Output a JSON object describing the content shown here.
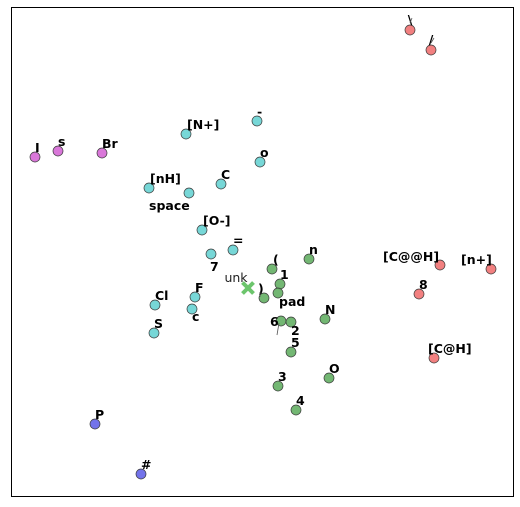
{
  "chart_data": {
    "type": "scatter",
    "title": "",
    "xlabel": "",
    "ylabel": "",
    "xlim": [
      0,
      500
    ],
    "ylim": [
      0,
      488
    ],
    "grid": false,
    "legend": "none",
    "clusters": {
      "teal": "#5fd0d0",
      "green": "#5aaa5a",
      "red": "#f06a6a",
      "magenta": "#d25fd2",
      "blue": "#5a5ae6"
    },
    "points": [
      {
        "label": "\\",
        "x": 398,
        "y": 466,
        "cluster": "red"
      },
      {
        "label": "/",
        "x": 419,
        "y": 446,
        "cluster": "red"
      },
      {
        "label": "[C@@H]",
        "x": 428,
        "y": 231,
        "cluster": "red"
      },
      {
        "label": "[n+]",
        "x": 479,
        "y": 227,
        "cluster": "red"
      },
      {
        "label": "8",
        "x": 407,
        "y": 202,
        "cluster": "red"
      },
      {
        "label": "[C@H]",
        "x": 422,
        "y": 138,
        "cluster": "red"
      },
      {
        "label": "I",
        "x": 23,
        "y": 339,
        "cluster": "magenta"
      },
      {
        "label": "s",
        "x": 46,
        "y": 345,
        "cluster": "magenta"
      },
      {
        "label": "Br",
        "x": 90,
        "y": 343,
        "cluster": "magenta"
      },
      {
        "label": "[N+]",
        "x": 174,
        "y": 362,
        "cluster": "teal"
      },
      {
        "label": "-",
        "x": 245,
        "y": 375,
        "cluster": "teal"
      },
      {
        "label": "o",
        "x": 248,
        "y": 334,
        "cluster": "teal"
      },
      {
        "label": "C",
        "x": 209,
        "y": 312,
        "cluster": "teal"
      },
      {
        "label": "[nH]",
        "x": 137,
        "y": 308,
        "cluster": "teal"
      },
      {
        "label": "space",
        "x": 177,
        "y": 303,
        "cluster": "teal"
      },
      {
        "label": "[O-]",
        "x": 190,
        "y": 266,
        "cluster": "teal"
      },
      {
        "label": "=",
        "x": 221,
        "y": 246,
        "cluster": "teal"
      },
      {
        "label": "7",
        "x": 199,
        "y": 242,
        "cluster": "teal"
      },
      {
        "label": "F",
        "x": 183,
        "y": 199,
        "cluster": "teal"
      },
      {
        "label": "Cl",
        "x": 143,
        "y": 191,
        "cluster": "teal"
      },
      {
        "label": "c",
        "x": 180,
        "y": 187,
        "cluster": "teal"
      },
      {
        "label": "S",
        "x": 142,
        "y": 163,
        "cluster": "teal"
      },
      {
        "label": "(",
        "x": 260,
        "y": 227,
        "cluster": "green"
      },
      {
        "label": "n",
        "x": 297,
        "y": 237,
        "cluster": "green"
      },
      {
        "label": "1",
        "x": 268,
        "y": 212,
        "cluster": "green"
      },
      {
        "label": ")",
        "x": 252,
        "y": 198,
        "cluster": "green"
      },
      {
        "label": "pad",
        "x": 266,
        "y": 203,
        "cluster": "green"
      },
      {
        "label": "N",
        "x": 313,
        "y": 177,
        "cluster": "green"
      },
      {
        "label": "6",
        "x": 269,
        "y": 175,
        "cluster": "green"
      },
      {
        "label": "2",
        "x": 279,
        "y": 174,
        "cluster": "green"
      },
      {
        "label": "5",
        "x": 279,
        "y": 144,
        "cluster": "green"
      },
      {
        "label": "O",
        "x": 317,
        "y": 118,
        "cluster": "green"
      },
      {
        "label": "3",
        "x": 266,
        "y": 110,
        "cluster": "green"
      },
      {
        "label": "4",
        "x": 284,
        "y": 86,
        "cluster": "green"
      },
      {
        "label": "P",
        "x": 83,
        "y": 72,
        "cluster": "blue"
      },
      {
        "label": "#",
        "x": 129,
        "y": 22,
        "cluster": "blue"
      }
    ],
    "unk": {
      "label": "unk",
      "x": 236,
      "y": 208,
      "color": "#6cc56c"
    }
  }
}
